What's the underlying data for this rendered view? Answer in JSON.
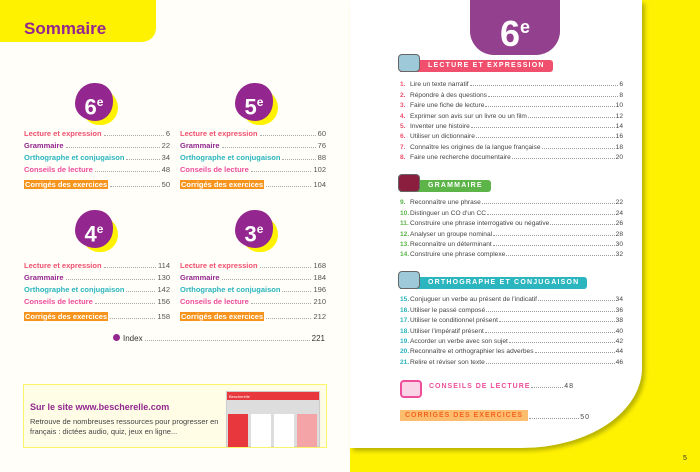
{
  "left": {
    "title": "Sommaire",
    "grades": [
      {
        "label": "6",
        "sup": "e",
        "items": [
          {
            "label": "Lecture et expression",
            "page": "6"
          },
          {
            "label": "Grammaire",
            "page": "22"
          },
          {
            "label": "Orthographe et conjugaison",
            "page": "34"
          },
          {
            "label": "Conseils de lecture",
            "page": "48"
          },
          {
            "label": "Corrigés des exercices",
            "page": "50"
          }
        ]
      },
      {
        "label": "5",
        "sup": "e",
        "items": [
          {
            "label": "Lecture et expression",
            "page": "60"
          },
          {
            "label": "Grammaire",
            "page": "76"
          },
          {
            "label": "Orthographe et conjugaison",
            "page": "88"
          },
          {
            "label": "Conseils de lecture",
            "page": "102"
          },
          {
            "label": "Corrigés des exercices",
            "page": "104"
          }
        ]
      },
      {
        "label": "4",
        "sup": "e",
        "items": [
          {
            "label": "Lecture et expression",
            "page": "114"
          },
          {
            "label": "Grammaire",
            "page": "130"
          },
          {
            "label": "Orthographe et conjugaison",
            "page": "142"
          },
          {
            "label": "Conseils de lecture",
            "page": "156"
          },
          {
            "label": "Corrigés des exercices",
            "page": "158"
          }
        ]
      },
      {
        "label": "3",
        "sup": "e",
        "items": [
          {
            "label": "Lecture et expression",
            "page": "168"
          },
          {
            "label": "Grammaire",
            "page": "184"
          },
          {
            "label": "Orthographe et conjugaison",
            "page": "196"
          },
          {
            "label": "Conseils de lecture",
            "page": "210"
          },
          {
            "label": "Corrigés des exercices",
            "page": "212"
          }
        ]
      }
    ],
    "index": {
      "label": "Index",
      "page": "221"
    },
    "site": {
      "heading": "Sur le site www.bescherelle.com",
      "text": "Retrouve de nombreuses ressources pour progresser en français : dictées audio, quiz, jeux en ligne...",
      "screenshot_brand": "Bescherelle"
    }
  },
  "right": {
    "grade": "6",
    "sup": "e",
    "sections": [
      {
        "title": "LECTURE ET EXPRESSION",
        "color": "#f0506e",
        "icon": "book-icon",
        "items": [
          {
            "n": "1.",
            "label": "Lire un texte narratif",
            "page": "6"
          },
          {
            "n": "2.",
            "label": "Répondre à des questions",
            "page": "8"
          },
          {
            "n": "3.",
            "label": "Faire une fiche de lecture",
            "page": "10"
          },
          {
            "n": "4.",
            "label": "Exprimer son avis sur un livre ou un film",
            "page": "12"
          },
          {
            "n": "5.",
            "label": "Inventer une histoire",
            "page": "14"
          },
          {
            "n": "6.",
            "label": "Utiliser un dictionnaire",
            "page": "16"
          },
          {
            "n": "7.",
            "label": "Connaître les origines de la langue française",
            "page": "18"
          },
          {
            "n": "8.",
            "label": "Faire une recherche documentaire",
            "page": "20"
          }
        ]
      },
      {
        "title": "GRAMMAIRE",
        "color": "#5db54a",
        "icon": "gears-icon",
        "items": [
          {
            "n": "9.",
            "label": "Reconnaître une phrase",
            "page": "22"
          },
          {
            "n": "10.",
            "label": "Distinguer un CO d'un CC",
            "page": "24"
          },
          {
            "n": "11.",
            "label": "Construire une phrase interrogative ou négative",
            "page": "26"
          },
          {
            "n": "12.",
            "label": "Analyser un groupe nominal",
            "page": "28"
          },
          {
            "n": "13.",
            "label": "Reconnaître un déterminant",
            "page": "30"
          },
          {
            "n": "14.",
            "label": "Construire une phrase complexe",
            "page": "32"
          }
        ]
      },
      {
        "title": "ORTHOGRAPHE ET CONJUGAISON",
        "color": "#2bb5bf",
        "icon": "pen-hand-icon",
        "items": [
          {
            "n": "15.",
            "label": "Conjuguer un verbe au présent de l'indicatif",
            "page": "34"
          },
          {
            "n": "16.",
            "label": "Utiliser le passé composé",
            "page": "36"
          },
          {
            "n": "17.",
            "label": "Utiliser le conditionnel présent",
            "page": "38"
          },
          {
            "n": "18.",
            "label": "Utiliser l'impératif présent",
            "page": "40"
          },
          {
            "n": "19.",
            "label": "Accorder un verbe avec son sujet",
            "page": "42"
          },
          {
            "n": "20.",
            "label": "Reconnaître et orthographier les adverbes",
            "page": "44"
          },
          {
            "n": "21.",
            "label": "Relire et réviser son texte",
            "page": "46"
          }
        ]
      }
    ],
    "conseils": {
      "label": "CONSEILS DE LECTURE",
      "page": "48"
    },
    "corriges": {
      "label": "CORRIGÉS DES EXERCICES",
      "page": "50"
    },
    "page_number": "5"
  },
  "colors": {
    "lecture": "#f0506e",
    "grammaire_left": "#93278f",
    "ortho": "#2bb5bf",
    "conseils": "#ee4d9b",
    "corriges": "#f7941d",
    "yellow": "#fff200",
    "purple": "#93278f"
  }
}
